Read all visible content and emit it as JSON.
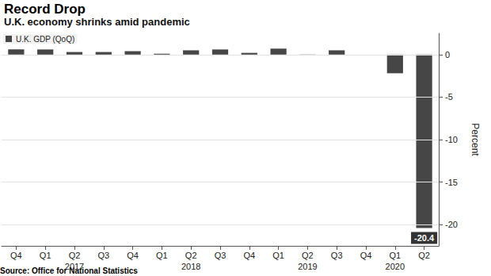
{
  "chart_data": {
    "type": "bar",
    "title": "Record Drop",
    "subtitle": "U.K. economy shrinks amid pandemic",
    "source": "Source: Office for National Statistics",
    "categories": [
      "Q4",
      "Q1",
      "Q2",
      "Q3",
      "Q4",
      "Q1",
      "Q2",
      "Q3",
      "Q4",
      "Q1",
      "Q2",
      "Q3",
      "Q4",
      "Q1",
      "Q2"
    ],
    "x_groups": [
      null,
      null,
      "2017",
      null,
      null,
      null,
      "2018",
      null,
      null,
      null,
      "2019",
      null,
      null,
      "2020",
      null
    ],
    "ylabel": "Percent",
    "ylim": [
      -22.5,
      2.5
    ],
    "yticks": [
      -20,
      -15,
      -10,
      -5,
      0
    ],
    "grid": true,
    "legend": "upper left",
    "series": [
      {
        "name": "U.K. GDP (QoQ)",
        "color": "#464646",
        "values": [
          0.6,
          0.6,
          0.3,
          0.3,
          0.4,
          0.1,
          0.5,
          0.6,
          0.2,
          0.7,
          -0.1,
          0.5,
          0.0,
          -2.2,
          -20.4
        ],
        "value_labels": [
          null,
          null,
          null,
          null,
          null,
          null,
          null,
          null,
          null,
          null,
          null,
          null,
          null,
          null,
          "-20.4"
        ]
      }
    ]
  }
}
